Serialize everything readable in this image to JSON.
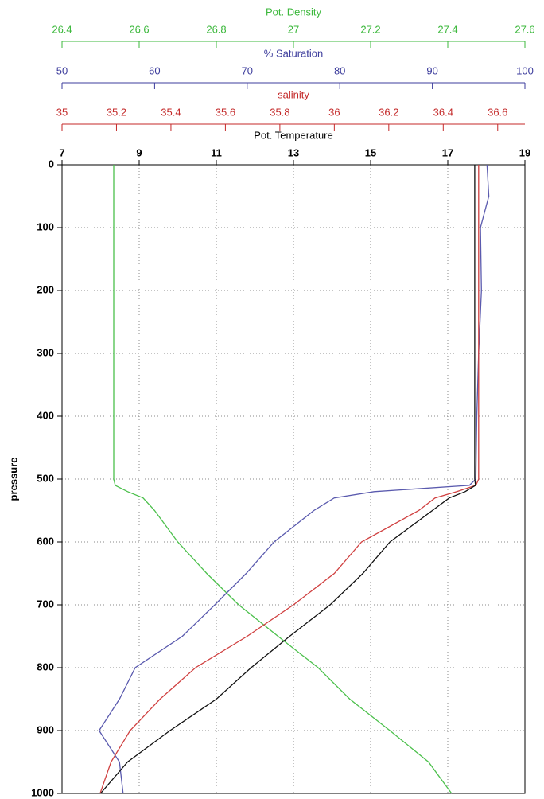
{
  "chart_data": {
    "type": "line",
    "y_label": "pressure",
    "y": [
      0,
      50,
      100,
      200,
      300,
      400,
      500,
      510,
      520,
      530,
      550,
      600,
      650,
      700,
      750,
      800,
      850,
      900,
      950,
      1000
    ],
    "ylim": [
      0,
      1000
    ],
    "y_inverted": true,
    "yticks": [
      0,
      100,
      200,
      300,
      400,
      500,
      600,
      700,
      800,
      900,
      1000
    ],
    "grid": true,
    "axes": [
      {
        "title": "Pot. Density",
        "color": "#3cb83c",
        "lim": [
          26.4,
          27.6
        ],
        "ticks": [
          26.4,
          26.6,
          26.8,
          27,
          27.2,
          27.4,
          27.6
        ]
      },
      {
        "title": "% Saturation",
        "color": "#3c3c9c",
        "lim": [
          50,
          100
        ],
        "ticks": [
          50,
          60,
          70,
          80,
          90,
          100
        ]
      },
      {
        "title": "salinity",
        "color": "#c42a2a",
        "lim": [
          35,
          36.7
        ],
        "ticks": [
          35,
          35.2,
          35.4,
          35.6,
          35.8,
          36,
          36.2,
          36.4,
          36.6
        ]
      },
      {
        "title": "Pot. Temperature",
        "color": "#000000",
        "lim": [
          7,
          19
        ],
        "ticks": [
          7,
          9,
          11,
          13,
          15,
          17,
          19
        ]
      }
    ],
    "series": [
      {
        "axis": 0,
        "color": "#4cc04c",
        "values": [
          26.534,
          26.534,
          26.534,
          26.534,
          26.534,
          26.534,
          26.534,
          26.538,
          26.57,
          26.61,
          26.64,
          26.7,
          26.775,
          26.858,
          26.96,
          27.064,
          27.146,
          27.25,
          27.35,
          27.41
        ]
      },
      {
        "axis": 1,
        "color": "#5a5aae",
        "values": [
          95.9,
          96.1,
          95.2,
          95.3,
          95,
          94.8,
          94.7,
          94,
          83.7,
          79.4,
          77.2,
          72.9,
          69.9,
          66.5,
          63,
          57.9,
          56.2,
          54,
          56.2,
          56.6
        ]
      },
      {
        "axis": 2,
        "color": "#d04040",
        "values": [
          36.53,
          36.53,
          36.53,
          36.53,
          36.53,
          36.53,
          36.53,
          36.52,
          36.45,
          36.37,
          36.31,
          36.1,
          36,
          35.85,
          35.68,
          35.49,
          35.36,
          35.25,
          35.18,
          35.14
        ]
      },
      {
        "axis": 3,
        "color": "#111111",
        "values": [
          17.7,
          17.7,
          17.7,
          17.7,
          17.7,
          17.7,
          17.7,
          17.72,
          17.45,
          17.04,
          16.6,
          15.5,
          14.8,
          13.95,
          12.9,
          11.9,
          11,
          9.8,
          8.7,
          8
        ]
      }
    ]
  }
}
